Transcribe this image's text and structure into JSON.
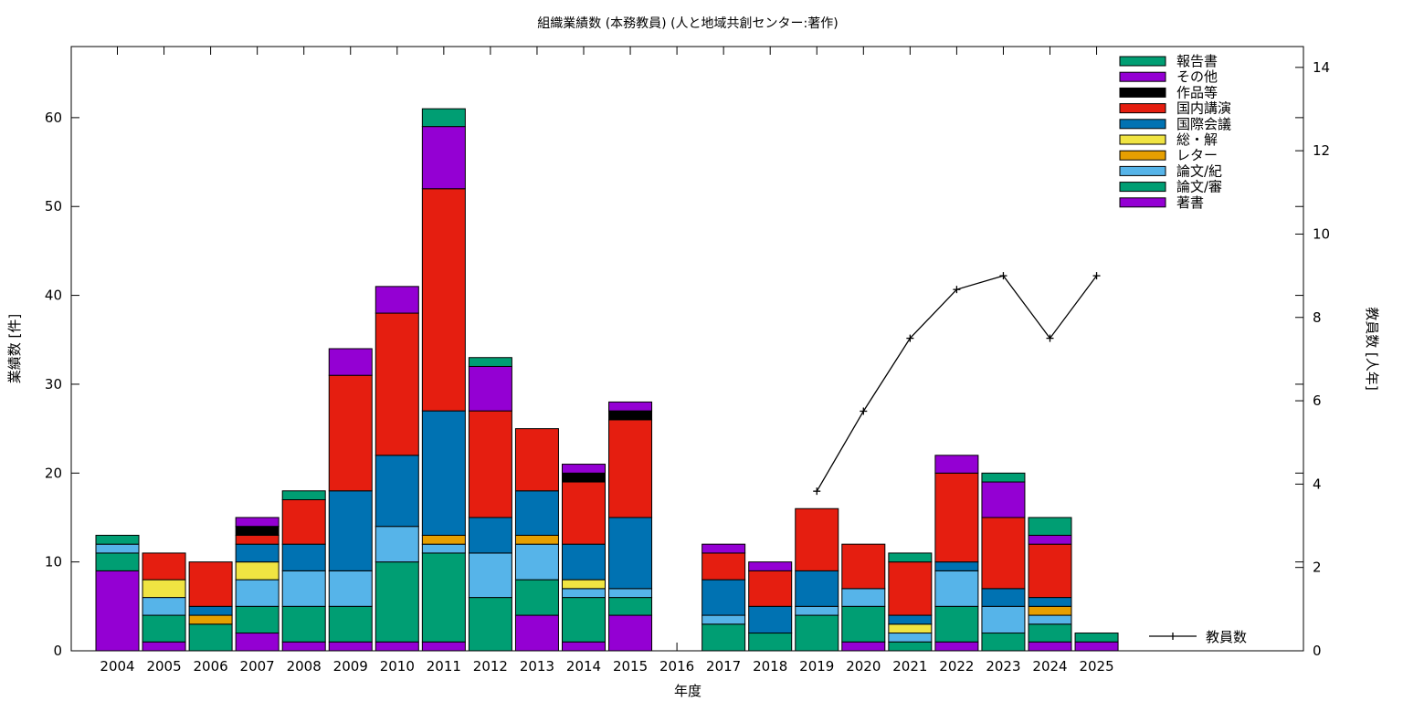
{
  "chart_data": {
    "type": "bar",
    "stacked": true,
    "title": "組織業績数 (本務教員) (人と地域共創センター:著作)",
    "xlabel": "年度",
    "ylabel": "業績数 [件]",
    "y2label": "教員数 [人年]",
    "ylim": [
      0,
      68
    ],
    "y2lim": [
      0,
      14.5
    ],
    "yticks": [
      "0",
      "10",
      "20",
      "30",
      "40",
      "50",
      "60"
    ],
    "y2ticks": [
      "0",
      "2",
      "4",
      "6",
      "8",
      "10",
      "12",
      "14"
    ],
    "legend_position": "top-right",
    "grid": false,
    "categories": [
      "2004",
      "2005",
      "2006",
      "2007",
      "2008",
      "2009",
      "2010",
      "2011",
      "2012",
      "2013",
      "2014",
      "2015",
      "2016",
      "2017",
      "2018",
      "2019",
      "2020",
      "2021",
      "2022",
      "2023",
      "2024",
      "2025"
    ],
    "series": [
      {
        "name": "著書",
        "color": "#9400d3",
        "values": [
          9,
          1,
          0,
          2,
          1,
          1,
          1,
          1,
          0,
          4,
          1,
          4,
          0,
          0,
          0,
          0,
          1,
          0,
          1,
          0,
          1,
          1
        ]
      },
      {
        "name": "論文/審",
        "color": "#009e73",
        "values": [
          2,
          3,
          3,
          3,
          4,
          4,
          9,
          10,
          6,
          4,
          5,
          2,
          0,
          3,
          2,
          4,
          4,
          1,
          4,
          2,
          2,
          0
        ]
      },
      {
        "name": "論文/紀",
        "color": "#56b4e9",
        "values": [
          1,
          2,
          0,
          3,
          4,
          4,
          4,
          1,
          5,
          4,
          1,
          1,
          0,
          1,
          0,
          1,
          2,
          1,
          4,
          3,
          1,
          0
        ]
      },
      {
        "name": "レター",
        "color": "#e69f00",
        "values": [
          0,
          0,
          1,
          0,
          0,
          0,
          0,
          1,
          0,
          1,
          0,
          0,
          0,
          0,
          0,
          0,
          0,
          0,
          0,
          0,
          1,
          0
        ]
      },
      {
        "name": "総・解",
        "color": "#f0e442",
        "values": [
          0,
          2,
          0,
          2,
          0,
          0,
          0,
          0,
          0,
          0,
          1,
          0,
          0,
          0,
          0,
          0,
          0,
          1,
          0,
          0,
          0,
          0
        ]
      },
      {
        "name": "国際会議",
        "color": "#0072b2",
        "values": [
          0,
          0,
          1,
          2,
          3,
          9,
          8,
          14,
          4,
          5,
          4,
          8,
          0,
          4,
          3,
          4,
          0,
          1,
          1,
          2,
          1,
          0
        ]
      },
      {
        "name": "国内講演",
        "color": "#e51e10",
        "values": [
          0,
          3,
          5,
          1,
          5,
          13,
          16,
          25,
          12,
          7,
          7,
          11,
          0,
          3,
          4,
          7,
          5,
          6,
          10,
          8,
          6,
          0
        ]
      },
      {
        "name": "作品等",
        "color": "#000000",
        "values": [
          0,
          0,
          0,
          1,
          0,
          0,
          0,
          0,
          0,
          0,
          1,
          1,
          0,
          0,
          0,
          0,
          0,
          0,
          0,
          0,
          0,
          0
        ]
      },
      {
        "name": "その他",
        "color": "#9400d3",
        "values": [
          0,
          0,
          0,
          1,
          0,
          3,
          3,
          7,
          5,
          0,
          1,
          1,
          0,
          1,
          1,
          0,
          0,
          0,
          2,
          4,
          1,
          0
        ]
      },
      {
        "name": "報告書",
        "color": "#009e73",
        "values": [
          1,
          0,
          0,
          0,
          1,
          0,
          0,
          2,
          1,
          0,
          0,
          0,
          0,
          0,
          0,
          0,
          0,
          1,
          0,
          1,
          2,
          1
        ]
      }
    ],
    "line": {
      "name": "教員数",
      "color": "#000000",
      "axis": "y2",
      "x": [
        "2019",
        "2020",
        "2021",
        "2022",
        "2023",
        "2024",
        "2025"
      ],
      "values": [
        3.83,
        5.75,
        7.5,
        8.67,
        9.0,
        7.5,
        9.0
      ]
    }
  }
}
